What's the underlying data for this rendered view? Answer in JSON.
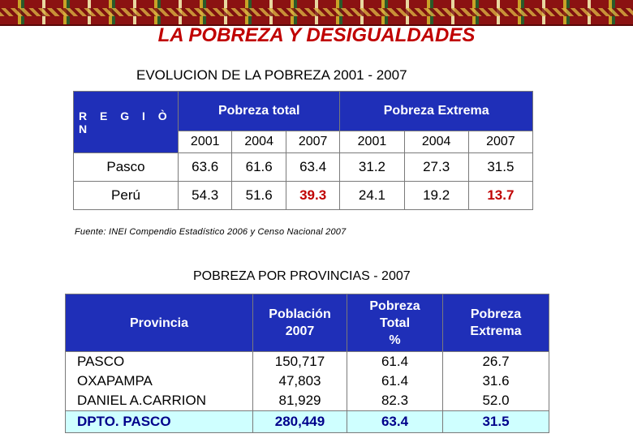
{
  "title": "LA POBREZA Y DESIGUALDADES",
  "table1": {
    "caption": "EVOLUCION DE LA POBREZA 2001 - 2007",
    "region_header": "R E G I Ò N",
    "group_headers": [
      "Pobreza total",
      "Pobreza Extrema"
    ],
    "years": [
      "2001",
      "2004",
      "2007",
      "2001",
      "2004",
      "2007"
    ],
    "rows": [
      {
        "region": "Pasco",
        "values": [
          "63.6",
          "61.6",
          "63.4",
          "31.2",
          "27.3",
          "31.5"
        ]
      },
      {
        "region": "Perú",
        "values": [
          "54.3",
          "51.6",
          "39.3",
          "24.1",
          "19.2",
          "13.7"
        ]
      }
    ],
    "source": "Fuente: INEI Compendio Estadístico 2006 y Censo Nacional 2007"
  },
  "table2": {
    "caption": "POBREZA POR PROVINCIAS - 2007",
    "headers": {
      "provincia": "Provincia",
      "poblacion_l1": "Población",
      "poblacion_l2": "2007",
      "total_l1": "Pobreza",
      "total_l2": "Total",
      "total_l3": "%",
      "extrema_l1": "Pobreza",
      "extrema_l2": "Extrema"
    },
    "rows": [
      {
        "provincia": "PASCO",
        "poblacion": "150,717",
        "total": "61.4",
        "extrema": "26.7"
      },
      {
        "provincia": "OXAPAMPA",
        "poblacion": "47,803",
        "total": "61.4",
        "extrema": "31.6"
      },
      {
        "provincia": "DANIEL A.CARRION",
        "poblacion": "81,929",
        "total": "82.3",
        "extrema": "52.0"
      }
    ],
    "total_row": {
      "provincia": "DPTO.  PASCO",
      "poblacion": "280,449",
      "total": "63.4",
      "extrema": "31.5"
    }
  }
}
